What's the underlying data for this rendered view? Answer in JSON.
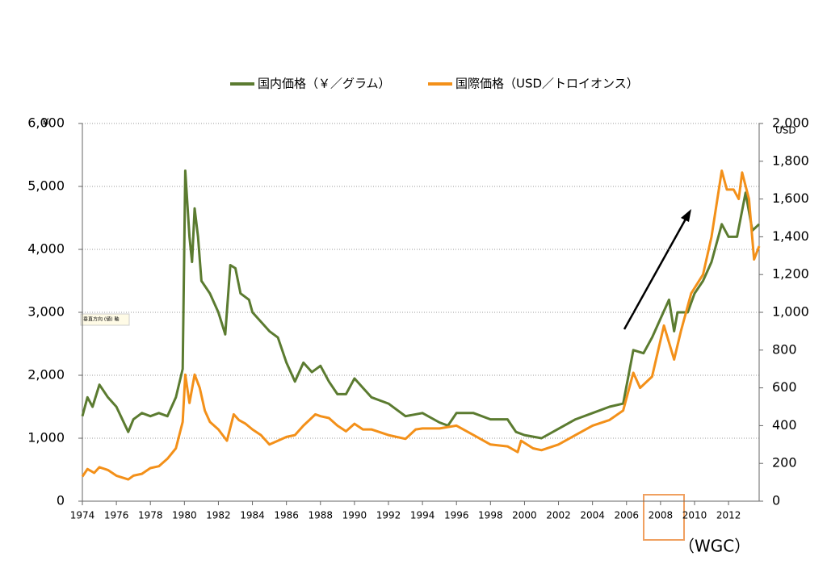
{
  "chart_data": {
    "type": "line",
    "legend_position": "top",
    "y_unit": "¥",
    "y2_unit": "USD",
    "annotation": "（WGC）",
    "tooltip": "垂直方向 (値) 軸",
    "grid": true,
    "xlim": [
      1974,
      2013.8
    ],
    "xticks": [
      1974,
      1976,
      1978,
      1980,
      1982,
      1984,
      1986,
      1988,
      1990,
      1992,
      1994,
      1996,
      1998,
      2000,
      2002,
      2004,
      2006,
      2008,
      2010,
      2012
    ],
    "ylim": [
      0,
      6000
    ],
    "yticks": [
      0,
      {
        "value": 1000,
        "label": "1,000"
      },
      {
        "value": 2000,
        "label": "2,000"
      },
      {
        "value": 3000,
        "label": "3,000"
      },
      {
        "value": 4000,
        "label": "4,000"
      },
      {
        "value": 5000,
        "label": "5,000"
      },
      {
        "value": 6000,
        "label": "6,000"
      }
    ],
    "y2lim": [
      0,
      2000
    ],
    "y2ticks": [
      0,
      200,
      400,
      600,
      800,
      {
        "value": 1000,
        "label": "1,000"
      },
      {
        "value": 1200,
        "label": "1,200"
      },
      {
        "value": 1400,
        "label": "1,400"
      },
      {
        "value": 1600,
        "label": "1,600"
      },
      {
        "value": 1800,
        "label": "1,800"
      },
      {
        "value": 2000,
        "label": "2,000"
      }
    ],
    "series": [
      {
        "name": "国内価格（￥／グラム）",
        "color": "#5b7b30",
        "x": [
          1974.0,
          1974.3,
          1974.6,
          1975.0,
          1975.5,
          1976.0,
          1976.7,
          1977.0,
          1977.5,
          1978.0,
          1978.5,
          1979.0,
          1979.5,
          1979.9,
          1980.05,
          1980.3,
          1980.45,
          1980.6,
          1980.8,
          1981.0,
          1981.5,
          1982.0,
          1982.4,
          1982.7,
          1983.0,
          1983.3,
          1983.8,
          1984.0,
          1985.0,
          1985.5,
          1986.0,
          1986.5,
          1987.0,
          1987.5,
          1988.0,
          1988.5,
          1989.0,
          1989.5,
          1990.0,
          1990.5,
          1991.0,
          1992.0,
          1993.0,
          1994.0,
          1995.0,
          1995.5,
          1996.0,
          1997.0,
          1998.0,
          1999.0,
          1999.5,
          2000.0,
          2001.0,
          2002.0,
          2003.0,
          2004.0,
          2005.0,
          2005.8,
          2006.4,
          2007.0,
          2007.5,
          2008.0,
          2008.5,
          2008.8,
          2009.0,
          2009.6,
          2010.0,
          2010.5,
          2011.0,
          2011.6,
          2012.0,
          2012.5,
          2013.0,
          2013.4,
          2013.8
        ],
        "values": [
          1350,
          1650,
          1500,
          1850,
          1650,
          1500,
          1100,
          1300,
          1400,
          1350,
          1400,
          1350,
          1650,
          2100,
          5250,
          4200,
          3800,
          4650,
          4200,
          3500,
          3300,
          3000,
          2650,
          3750,
          3700,
          3300,
          3200,
          3000,
          2700,
          2600,
          2200,
          1900,
          2200,
          2050,
          2150,
          1900,
          1700,
          1700,
          1950,
          1800,
          1650,
          1550,
          1350,
          1400,
          1250,
          1200,
          1400,
          1400,
          1300,
          1300,
          1100,
          1050,
          1000,
          1150,
          1300,
          1400,
          1500,
          1550,
          2400,
          2350,
          2600,
          2900,
          3200,
          2700,
          3000,
          3000,
          3300,
          3500,
          3800,
          4400,
          4200,
          4200,
          4900,
          4300,
          4400
        ]
      },
      {
        "name": "国際価格（USD／トロイオンス）",
        "color": "#f39019",
        "axis": "y2",
        "x": [
          1974.0,
          1974.3,
          1974.7,
          1975.0,
          1975.5,
          1976.0,
          1976.7,
          1977.0,
          1977.5,
          1978.0,
          1978.5,
          1979.0,
          1979.5,
          1979.9,
          1980.05,
          1980.3,
          1980.6,
          1980.9,
          1981.2,
          1981.5,
          1982.0,
          1982.5,
          1982.9,
          1983.2,
          1983.6,
          1984.0,
          1984.5,
          1985.0,
          1985.5,
          1986.0,
          1986.5,
          1987.0,
          1987.7,
          1988.0,
          1988.5,
          1989.0,
          1989.5,
          1990.0,
          1990.5,
          1991.0,
          1992.0,
          1993.0,
          1993.6,
          1994.0,
          1995.0,
          1996.0,
          1997.0,
          1998.0,
          1999.0,
          1999.6,
          1999.8,
          2000.5,
          2001.0,
          2002.0,
          2003.0,
          2004.0,
          2005.0,
          2005.8,
          2006.4,
          2006.8,
          2007.5,
          2008.2,
          2008.8,
          2009.2,
          2009.8,
          2010.5,
          2011.0,
          2011.6,
          2011.9,
          2012.3,
          2012.6,
          2012.8,
          2013.2,
          2013.5,
          2013.8
        ],
        "values": [
          130,
          170,
          150,
          180,
          165,
          135,
          115,
          135,
          145,
          175,
          185,
          225,
          280,
          420,
          670,
          520,
          670,
          600,
          480,
          420,
          380,
          320,
          460,
          430,
          410,
          380,
          350,
          300,
          320,
          340,
          350,
          400,
          460,
          450,
          440,
          400,
          370,
          410,
          380,
          380,
          350,
          330,
          380,
          385,
          385,
          400,
          350,
          300,
          290,
          260,
          320,
          280,
          270,
          300,
          350,
          400,
          430,
          480,
          680,
          600,
          660,
          930,
          750,
          900,
          1100,
          1200,
          1400,
          1750,
          1650,
          1650,
          1600,
          1740,
          1600,
          1280,
          1350
        ]
      }
    ]
  }
}
